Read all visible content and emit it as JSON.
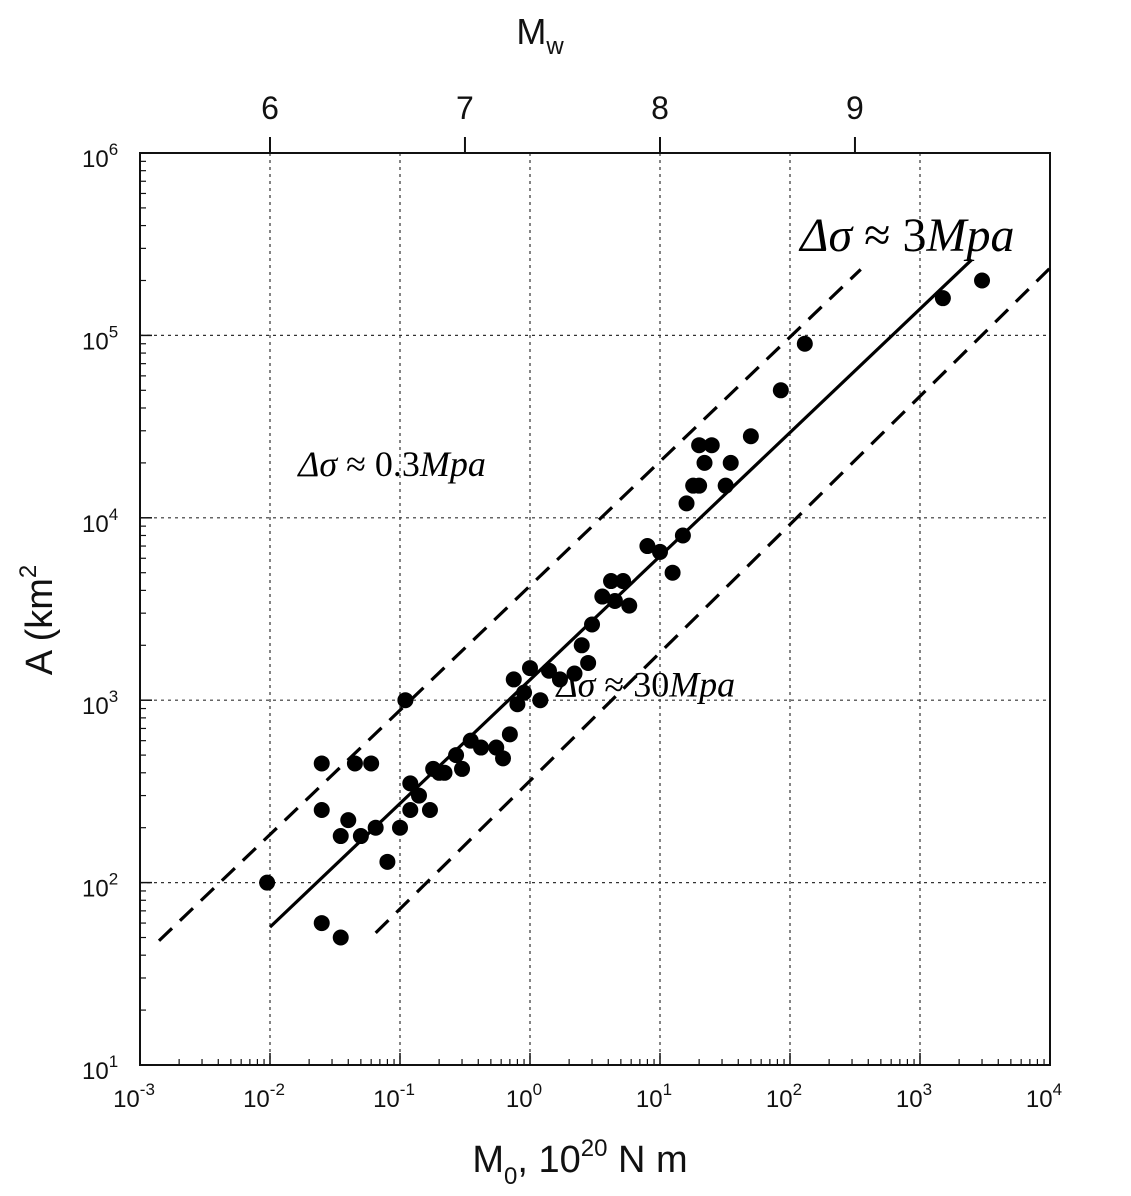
{
  "chart_data": {
    "type": "scatter",
    "scale": {
      "x": "log",
      "y": "log"
    },
    "xlim": [
      0.001,
      10000
    ],
    "ylim": [
      10,
      1000000
    ],
    "grid": true,
    "xlabel": {
      "main": "M",
      "sub": "0",
      "rest": ",  10",
      "sup": "20",
      "unit": " N m"
    },
    "ylabel": {
      "main": "A (km",
      "sup": "2"
    },
    "top_axis": {
      "label": {
        "main": "M",
        "sub": "w"
      },
      "ticks": [
        {
          "label": "6",
          "x": 0.01
        },
        {
          "label": "7",
          "x": 0.316
        },
        {
          "label": "8",
          "x": 10
        },
        {
          "label": "9",
          "x": 316
        }
      ]
    },
    "x_ticks": [
      {
        "x": 0.001,
        "base": "10",
        "exp": "-3"
      },
      {
        "x": 0.01,
        "base": "10",
        "exp": "-2"
      },
      {
        "x": 0.1,
        "base": "10",
        "exp": "-1"
      },
      {
        "x": 1,
        "base": "10",
        "exp": "0"
      },
      {
        "x": 10,
        "base": "10",
        "exp": "1"
      },
      {
        "x": 100,
        "base": "10",
        "exp": "2"
      },
      {
        "x": 1000,
        "base": "10",
        "exp": "3"
      },
      {
        "x": 10000,
        "base": "10",
        "exp": "4"
      }
    ],
    "y_ticks": [
      {
        "y": 10,
        "base": "10",
        "exp": "1"
      },
      {
        "y": 100,
        "base": "10",
        "exp": "2"
      },
      {
        "y": 1000,
        "base": "10",
        "exp": "3"
      },
      {
        "y": 10000,
        "base": "10",
        "exp": "4"
      },
      {
        "y": 100000,
        "base": "10",
        "exp": "5"
      },
      {
        "y": 1000000,
        "base": "10",
        "exp": "6"
      }
    ],
    "fit_line": {
      "style": "solid",
      "points": [
        [
          0.01,
          57
        ],
        [
          2500,
          260000
        ]
      ]
    },
    "reference_lines": [
      {
        "style": "dashed",
        "label": "Δσ ≈ 3Mpa",
        "points": [
          [
            0.0014,
            48
          ],
          [
            350,
            230000
          ]
        ]
      },
      {
        "style": "dashed",
        "label": "Δσ ≈ 0.3Mpa",
        "points": [],
        "note": ""
      },
      {
        "style": "dashed",
        "label": "Δσ ≈ 30Mpa",
        "points": [
          [
            0.065,
            53
          ],
          [
            11000,
            250000
          ]
        ]
      }
    ],
    "annotations": [
      {
        "text_greek": "Δσ",
        "text_op": " ≈ ",
        "text_num": "3",
        "text_unit": "Mpa",
        "x": 120,
        "y": 290000
      },
      {
        "text_greek": "Δσ",
        "text_op": " ≈ ",
        "text_num": "0.3",
        "text_unit": "Mpa",
        "x": 0.0165,
        "y": 17000
      },
      {
        "text_greek": "Δσ",
        "text_op": " ≈ ",
        "text_num": "30",
        "text_unit": "Mpa",
        "x": 1.6,
        "y": 1050
      }
    ],
    "series": [
      {
        "points": [
          [
            0.0095,
            100
          ],
          [
            0.025,
            60
          ],
          [
            0.035,
            50
          ],
          [
            0.025,
            450
          ],
          [
            0.045,
            450
          ],
          [
            0.06,
            450
          ],
          [
            0.11,
            1000
          ],
          [
            0.025,
            250
          ],
          [
            0.04,
            220
          ],
          [
            0.035,
            180
          ],
          [
            0.05,
            180
          ],
          [
            0.065,
            200
          ],
          [
            0.08,
            130
          ],
          [
            0.1,
            200
          ],
          [
            0.12,
            250
          ],
          [
            0.12,
            350
          ],
          [
            0.14,
            300
          ],
          [
            0.17,
            250
          ],
          [
            0.18,
            420
          ],
          [
            0.2,
            400
          ],
          [
            0.22,
            400
          ],
          [
            0.27,
            500
          ],
          [
            0.3,
            420
          ],
          [
            0.35,
            600
          ],
          [
            0.42,
            550
          ],
          [
            0.55,
            550
          ],
          [
            0.7,
            650
          ],
          [
            0.62,
            480
          ],
          [
            0.8,
            950
          ],
          [
            0.9,
            1100
          ],
          [
            0.75,
            1300
          ],
          [
            1.0,
            1500
          ],
          [
            1.4,
            1450
          ],
          [
            1.7,
            1300
          ],
          [
            1.2,
            1000
          ],
          [
            2.2,
            1400
          ],
          [
            2.8,
            1600
          ],
          [
            2.5,
            2000
          ],
          [
            3.0,
            2600
          ],
          [
            3.6,
            3700
          ],
          [
            4.5,
            3500
          ],
          [
            4.2,
            4500
          ],
          [
            5.2,
            4500
          ],
          [
            5.8,
            3300
          ],
          [
            8.0,
            7000
          ],
          [
            10.0,
            6500
          ],
          [
            12.5,
            5000
          ],
          [
            15,
            8000
          ],
          [
            16,
            12000
          ],
          [
            18,
            15000
          ],
          [
            20,
            15000
          ],
          [
            22,
            20000
          ],
          [
            20,
            25000
          ],
          [
            25,
            25000
          ],
          [
            32,
            15000
          ],
          [
            35,
            20000
          ],
          [
            50,
            28000
          ],
          [
            85,
            50000
          ],
          [
            130,
            90000
          ],
          [
            1500,
            160000
          ],
          [
            3000,
            200000
          ]
        ]
      }
    ]
  }
}
